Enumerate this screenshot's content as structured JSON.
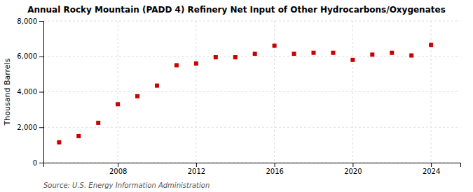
{
  "chart_data": {
    "type": "scatter",
    "title": "Annual Rocky Mountain (PADD 4) Refinery Net Input of Other Hydrocarbons/Oxygenates",
    "ylabel": "Thousand Barrels",
    "source": "Source: U.S. Energy Information Administration",
    "x": [
      2005,
      2006,
      2007,
      2008,
      2009,
      2010,
      2011,
      2012,
      2013,
      2014,
      2015,
      2016,
      2017,
      2018,
      2019,
      2020,
      2021,
      2022,
      2023,
      2024
    ],
    "values": [
      1150,
      1500,
      2250,
      3300,
      3750,
      4350,
      5500,
      5600,
      5950,
      5950,
      6150,
      6600,
      6150,
      6200,
      6200,
      5800,
      6100,
      6200,
      6050,
      6650
    ],
    "color": "#cc0000",
    "marker": "square",
    "xlim": [
      2004.2,
      2025.5
    ],
    "xticks": [
      2008,
      2012,
      2016,
      2020,
      2024
    ],
    "ylim": [
      0,
      8000
    ],
    "yticks": [
      0,
      {
        "value": 2000,
        "label": "2,000"
      },
      {
        "value": 4000,
        "label": "4,000"
      },
      {
        "value": 6000,
        "label": "6,000"
      },
      {
        "value": 8000,
        "label": "8,000"
      }
    ],
    "grid": true
  }
}
